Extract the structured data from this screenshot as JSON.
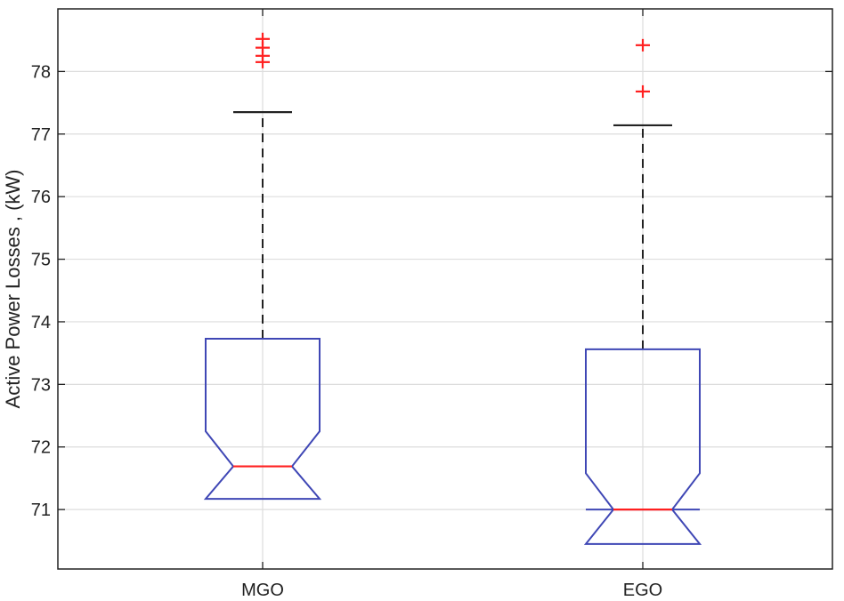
{
  "chart_data": {
    "type": "boxplot",
    "title": "",
    "xlabel": "",
    "ylabel": "Active Power Losses , (kW)",
    "ylim": [
      70.05,
      79.0
    ],
    "yticks": [
      71,
      72,
      73,
      74,
      75,
      76,
      77,
      78
    ],
    "ytick_labels": [
      "71",
      "72",
      "73",
      "74",
      "75",
      "76",
      "77",
      "78"
    ],
    "grid": true,
    "categories": [
      "MGO",
      "EGO"
    ],
    "boxes": [
      {
        "category": "MGO",
        "whisker_low": 71.17,
        "q1": 71.17,
        "median": 71.69,
        "q3": 73.73,
        "whisker_high": 77.35,
        "notch_low": 71.17,
        "notch_high": 72.25,
        "outliers": [
          78.15,
          78.25,
          78.38,
          78.52
        ]
      },
      {
        "category": "EGO",
        "whisker_low": 71.0,
        "q1": 71.0,
        "median": 71.0,
        "q3": 73.56,
        "whisker_high": 77.14,
        "notch_low": 70.45,
        "notch_high": 71.58,
        "outliers": [
          77.68,
          78.42
        ]
      }
    ],
    "colors": {
      "box": "#3f47b5",
      "median": "#ff2020",
      "whisker": "#222222",
      "outlier": "#ff2020",
      "grid": "#dddddd",
      "axes": "#222222"
    }
  }
}
